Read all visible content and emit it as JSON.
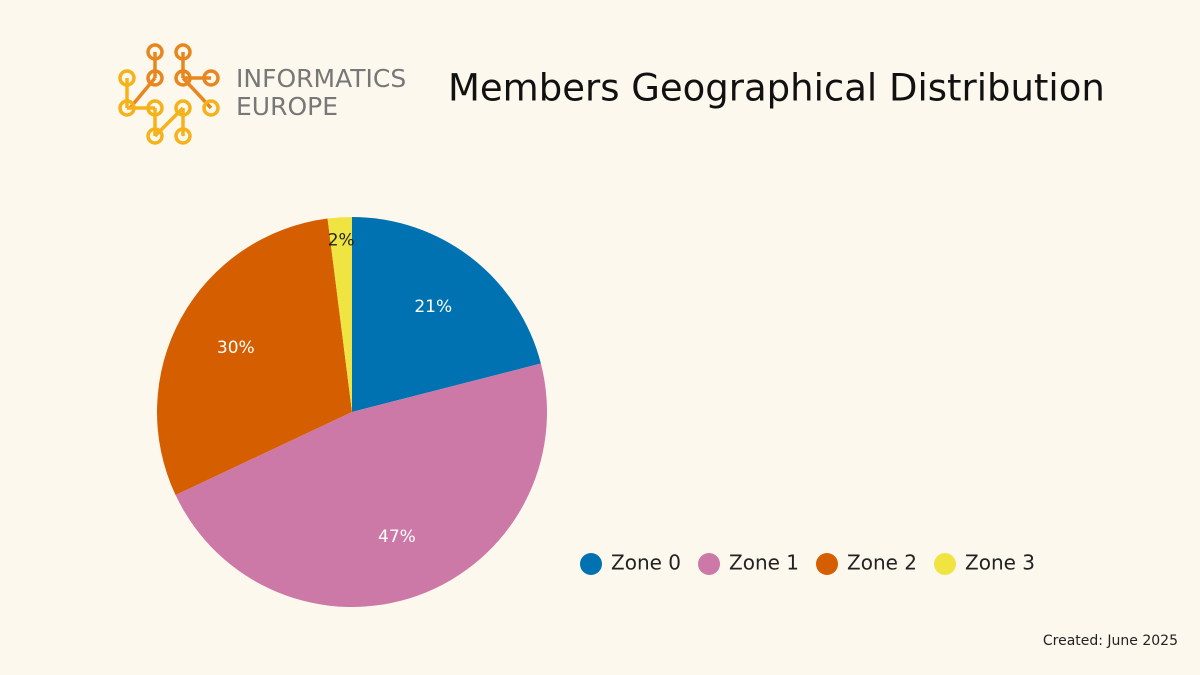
{
  "logo": {
    "line1": "INFORMATICS",
    "line2": "EUROPE"
  },
  "chart_data": {
    "type": "pie",
    "title": "Members Geographical Distribution",
    "categories": [
      "Zone 0",
      "Zone 1",
      "Zone 2",
      "Zone 3"
    ],
    "values": [
      21,
      47,
      30,
      2
    ],
    "value_labels": [
      "21%",
      "47%",
      "30%",
      "2%"
    ],
    "colors": [
      "#0072b2",
      "#cc79a7",
      "#d55e00",
      "#f0e442"
    ],
    "legend": "bottom"
  },
  "footer": "Created: June 2025"
}
